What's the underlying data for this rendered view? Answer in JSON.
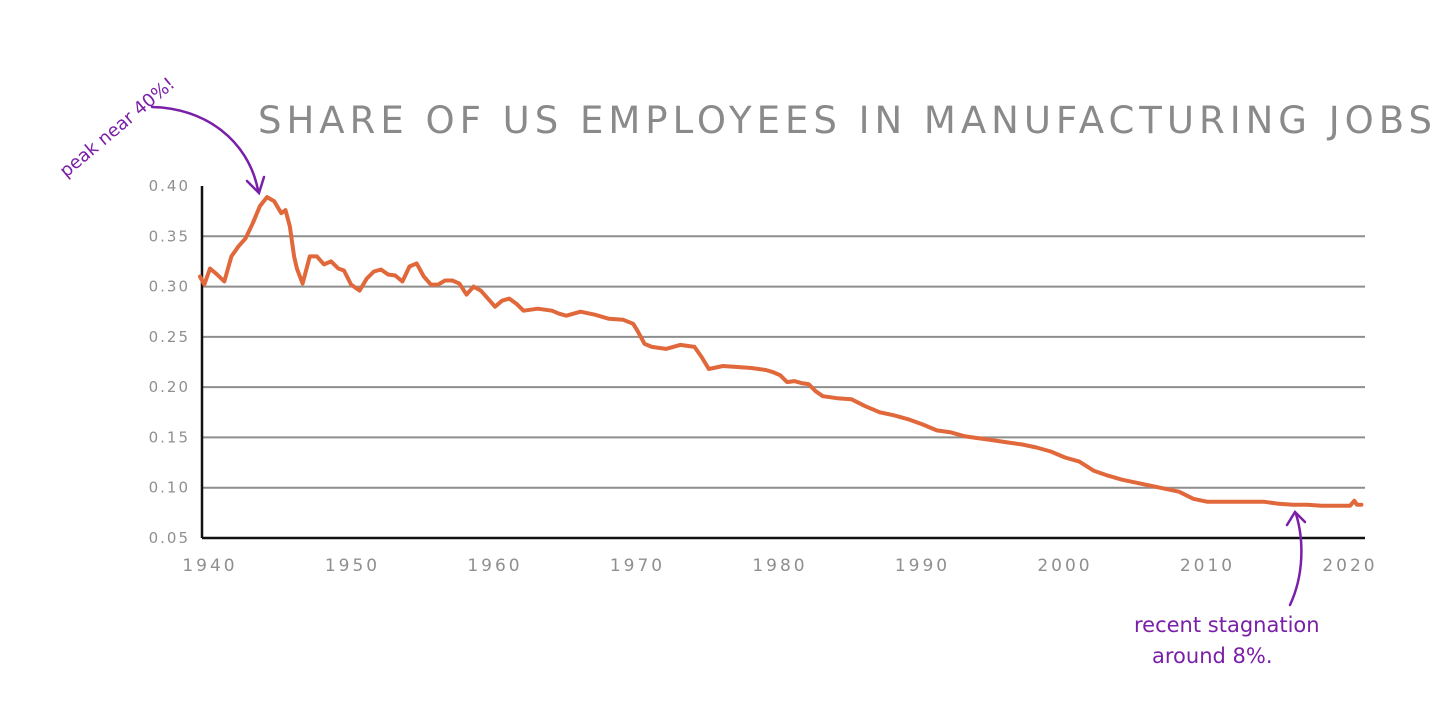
{
  "chart_data": {
    "type": "line",
    "title": "SHARE OF US EMPLOYEES IN MANUFACTURING JOBS",
    "xlabel": "",
    "ylabel": "",
    "xlim": [
      1939.3,
      2020.8
    ],
    "ylim": [
      0.05,
      0.4
    ],
    "x_ticks": [
      1940,
      1950,
      1960,
      1970,
      1980,
      1990,
      2000,
      2010,
      2020
    ],
    "x_tick_labels": [
      "1940",
      "1950",
      "1960",
      "1970",
      "1980",
      "1990",
      "2000",
      "2010",
      "2020"
    ],
    "y_ticks": [
      0.05,
      0.1,
      0.15,
      0.2,
      0.25,
      0.3,
      0.35,
      0.4
    ],
    "y_tick_labels": [
      "0.05",
      "0.10",
      "0.15",
      "0.20",
      "0.25",
      "0.30",
      "0.35",
      "0.40"
    ],
    "gridlines": [
      0.1,
      0.15,
      0.2,
      0.25,
      0.3,
      0.35
    ],
    "series": [
      {
        "color": "#e0683b",
        "x": [
          1939.3,
          1939.6,
          1940.0,
          1940.5,
          1941.0,
          1941.5,
          1942.0,
          1942.5,
          1943.0,
          1943.5,
          1944.0,
          1944.5,
          1945.0,
          1945.3,
          1945.6,
          1945.9,
          1946.1,
          1946.5,
          1947.0,
          1947.5,
          1948.0,
          1948.5,
          1949.0,
          1949.4,
          1949.9,
          1950.5,
          1951.0,
          1951.5,
          1952.0,
          1952.5,
          1953.0,
          1953.5,
          1954.0,
          1954.5,
          1955.0,
          1955.5,
          1956.0,
          1956.5,
          1957.0,
          1957.5,
          1958.0,
          1958.5,
          1959.0,
          1959.5,
          1960.0,
          1960.5,
          1961.0,
          1961.5,
          1962.0,
          1963.0,
          1964.0,
          1964.5,
          1965.0,
          1966.0,
          1967.0,
          1968.0,
          1969.0,
          1969.7,
          1970.0,
          1970.5,
          1971.0,
          1972.0,
          1973.0,
          1974.0,
          1974.5,
          1975.0,
          1976.0,
          1977.0,
          1978.0,
          1979.0,
          1979.5,
          1980.0,
          1980.5,
          1981.0,
          1981.5,
          1982.0,
          1982.5,
          1983.0,
          1984.0,
          1985.0,
          1986.0,
          1987.0,
          1988.0,
          1989.0,
          1990.0,
          1991.0,
          1992.0,
          1993.0,
          1994.0,
          1995.0,
          1996.0,
          1997.0,
          1998.0,
          1999.0,
          2000.0,
          2001.0,
          2002.0,
          2003.0,
          2004.0,
          2005.0,
          2006.0,
          2007.0,
          2008.0,
          2009.0,
          2010.0,
          2011.0,
          2012.0,
          2013.0,
          2014.0,
          2015.0,
          2016.0,
          2017.0,
          2018.0,
          2019.0,
          2020.0,
          2020.3,
          2020.5,
          2020.8
        ],
        "y": [
          0.31,
          0.302,
          0.318,
          0.312,
          0.305,
          0.33,
          0.34,
          0.348,
          0.363,
          0.38,
          0.389,
          0.385,
          0.373,
          0.376,
          0.36,
          0.33,
          0.318,
          0.303,
          0.33,
          0.33,
          0.322,
          0.325,
          0.318,
          0.316,
          0.302,
          0.296,
          0.308,
          0.315,
          0.317,
          0.312,
          0.311,
          0.305,
          0.32,
          0.323,
          0.31,
          0.302,
          0.302,
          0.306,
          0.306,
          0.303,
          0.292,
          0.3,
          0.296,
          0.288,
          0.28,
          0.286,
          0.288,
          0.283,
          0.276,
          0.278,
          0.276,
          0.273,
          0.271,
          0.275,
          0.272,
          0.268,
          0.267,
          0.263,
          0.256,
          0.243,
          0.24,
          0.238,
          0.242,
          0.24,
          0.23,
          0.218,
          0.221,
          0.22,
          0.219,
          0.217,
          0.215,
          0.212,
          0.205,
          0.206,
          0.204,
          0.203,
          0.196,
          0.191,
          0.189,
          0.188,
          0.181,
          0.175,
          0.172,
          0.168,
          0.163,
          0.157,
          0.155,
          0.151,
          0.149,
          0.147,
          0.145,
          0.143,
          0.14,
          0.136,
          0.13,
          0.126,
          0.117,
          0.112,
          0.108,
          0.105,
          0.102,
          0.099,
          0.096,
          0.089,
          0.086,
          0.086,
          0.086,
          0.086,
          0.086,
          0.084,
          0.083,
          0.083,
          0.082,
          0.082,
          0.082,
          0.087,
          0.083,
          0.083
        ]
      }
    ],
    "grid": true,
    "legend": "none",
    "annotations": [
      {
        "id": "peak",
        "text": "peak near 40%!",
        "color": "#7a1fa8"
      },
      {
        "id": "recent",
        "lines": [
          "recent stagnation",
          "around 8%."
        ],
        "color": "#7a1fa8"
      }
    ]
  }
}
